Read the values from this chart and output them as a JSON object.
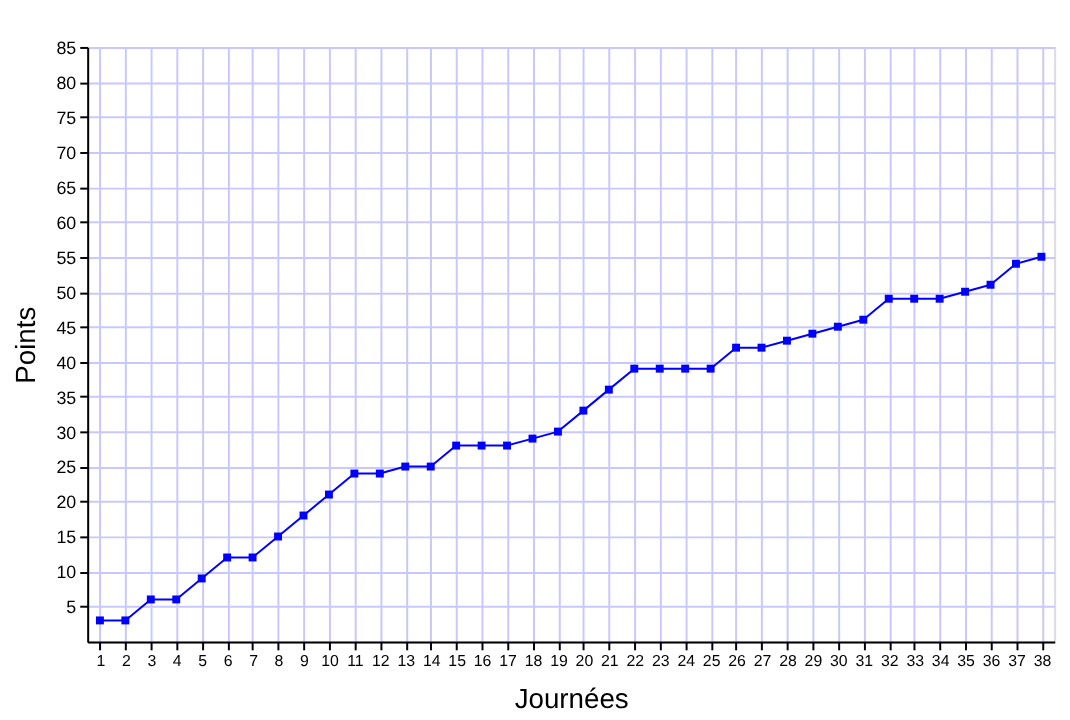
{
  "chart_data": {
    "type": "line",
    "xlabel": "Journées",
    "ylabel": "Points",
    "x": [
      1,
      2,
      3,
      4,
      5,
      6,
      7,
      8,
      9,
      10,
      11,
      12,
      13,
      14,
      15,
      16,
      17,
      18,
      19,
      20,
      21,
      22,
      23,
      24,
      25,
      26,
      27,
      28,
      29,
      30,
      31,
      32,
      33,
      34,
      35,
      36,
      37,
      38
    ],
    "series": [
      {
        "color": "#0000ff",
        "values": [
          3,
          3,
          6,
          6,
          9,
          12,
          12,
          15,
          18,
          21,
          24,
          24,
          25,
          25,
          28,
          28,
          28,
          29,
          30,
          33,
          36,
          39,
          39,
          39,
          39,
          42,
          42,
          43,
          44,
          45,
          46,
          49,
          49,
          49,
          50,
          51,
          54,
          55
        ]
      }
    ],
    "xlim": [
      0.5,
      38.5
    ],
    "xticks": [
      1,
      2,
      3,
      4,
      5,
      6,
      7,
      8,
      9,
      10,
      11,
      12,
      13,
      14,
      15,
      16,
      17,
      18,
      19,
      20,
      21,
      22,
      23,
      24,
      25,
      26,
      27,
      28,
      29,
      30,
      31,
      32,
      33,
      34,
      35,
      36,
      37,
      38
    ],
    "ylim": [
      0,
      85
    ],
    "yticks": [
      5,
      10,
      15,
      20,
      25,
      30,
      35,
      40,
      45,
      50,
      55,
      60,
      65,
      70,
      75,
      80,
      85
    ],
    "grid": true,
    "marker": "square",
    "line_style": "solid"
  }
}
